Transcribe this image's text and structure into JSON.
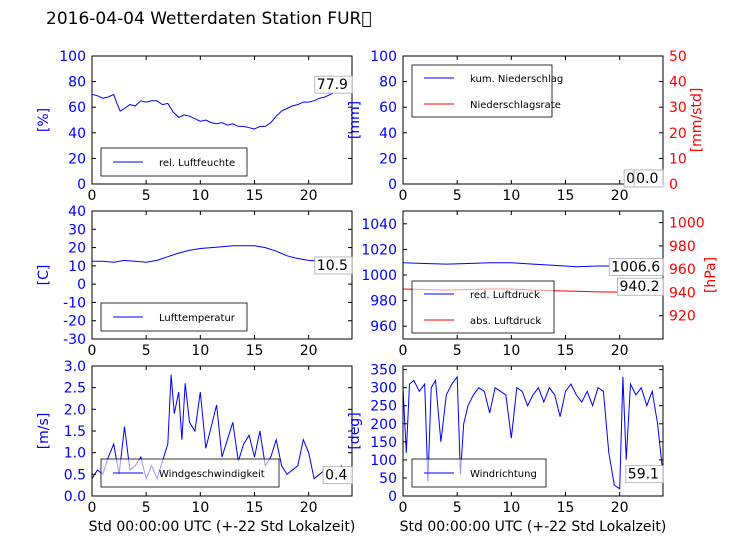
{
  "figure": {
    "title": "2016-04-04 Wetterdaten Station FUR\u0000"
  },
  "colors": {
    "primary": "#0000ff",
    "secondary": "#ff0000",
    "axis": "#000000"
  },
  "chart_data": [
    {
      "id": "humidity",
      "type": "line",
      "xlim": [
        0,
        24
      ],
      "ylim": [
        0,
        100
      ],
      "xticks": [
        0,
        5,
        10,
        15,
        20
      ],
      "yticks": [
        0,
        20,
        40,
        60,
        80,
        100
      ],
      "ylabel": "[%]",
      "xlabel": "",
      "legend": {
        "placement": "lower-left",
        "entries": [
          "rel. Luftfeuchte"
        ]
      },
      "last_value_label": "77.9",
      "series": [
        {
          "name": "rel. Luftfeuchte",
          "color": "#0000ff",
          "x": [
            0,
            0.5,
            1,
            1.5,
            2,
            2.3,
            2.6,
            3,
            3.5,
            4,
            4.5,
            5,
            5.5,
            6,
            6.5,
            7,
            7.5,
            8,
            8.5,
            9,
            9.5,
            10,
            10.5,
            11,
            11.5,
            12,
            12.5,
            13,
            13.5,
            14,
            14.5,
            15,
            15.5,
            16,
            16.5,
            17,
            17.5,
            18,
            18.5,
            19,
            19.5,
            20,
            20.5,
            21,
            21.5,
            22,
            22.5,
            23,
            23.5,
            24
          ],
          "y": [
            70,
            69,
            67,
            68,
            70,
            63,
            57,
            59,
            62,
            61,
            65,
            64,
            65,
            65,
            62,
            63,
            56,
            52,
            54,
            53,
            51,
            49,
            50,
            48,
            47,
            48,
            46,
            47,
            45,
            45,
            44,
            43,
            45,
            45,
            48,
            53,
            57,
            59,
            61,
            62,
            64,
            64,
            65,
            67,
            68,
            70,
            72,
            74,
            76,
            78
          ]
        }
      ]
    },
    {
      "id": "precipitation",
      "type": "line",
      "xlim": [
        0,
        24
      ],
      "ylim": [
        0,
        100
      ],
      "ylim_right": [
        0,
        50
      ],
      "xticks": [
        0,
        5,
        10,
        15,
        20
      ],
      "yticks": [
        0,
        20,
        40,
        60,
        80,
        100
      ],
      "yticks_right": [
        0,
        10,
        20,
        30,
        40,
        50
      ],
      "ylabel": "[mm]",
      "ylabel_right": "[mm/std]",
      "xlabel": "",
      "legend": {
        "placement": "upper-left",
        "entries": [
          "kum. Niederschlag",
          "Niederschlagsrate"
        ]
      },
      "last_value_label": "0.0",
      "last_value_label_right": "0.0",
      "series": [
        {
          "name": "kum. Niederschlag",
          "color": "#0000ff",
          "axis": "left",
          "x": [
            0,
            24
          ],
          "y": [
            0,
            0
          ]
        },
        {
          "name": "Niederschlagsrate",
          "color": "#ff0000",
          "axis": "right",
          "x": [
            0,
            24
          ],
          "y": [
            0,
            0
          ]
        }
      ]
    },
    {
      "id": "temperature",
      "type": "line",
      "xlim": [
        0,
        24
      ],
      "ylim": [
        -30,
        40
      ],
      "xticks": [
        0,
        5,
        10,
        15,
        20
      ],
      "yticks": [
        -30,
        -20,
        -10,
        0,
        10,
        20,
        30,
        40
      ],
      "ylabel": "[C]",
      "xlabel": "",
      "legend": {
        "placement": "lower-left",
        "entries": [
          "Lufttemperatur"
        ]
      },
      "last_value_label": "10.5",
      "series": [
        {
          "name": "Lufttemperatur",
          "color": "#0000ff",
          "x": [
            0,
            1,
            2,
            3,
            4,
            5,
            6,
            7,
            8,
            9,
            10,
            11,
            12,
            13,
            14,
            15,
            16,
            17,
            18,
            19,
            20,
            21,
            22,
            23,
            24
          ],
          "y": [
            12.5,
            12.5,
            12,
            13,
            12.5,
            12,
            13,
            15,
            17,
            18.5,
            19.5,
            20,
            20.5,
            21,
            21,
            21,
            20,
            18,
            15.5,
            14,
            13,
            12.5,
            12,
            11,
            10.5
          ]
        }
      ]
    },
    {
      "id": "pressure",
      "type": "line",
      "xlim": [
        0,
        24
      ],
      "ylim": [
        950,
        1050
      ],
      "ylim_right": [
        900,
        1010
      ],
      "xticks": [
        0,
        5,
        10,
        15,
        20
      ],
      "yticks": [
        960,
        980,
        1000,
        1020,
        1040
      ],
      "yticks_right": [
        920,
        940,
        960,
        980,
        1000
      ],
      "ylabel": "",
      "ylabel_right": "[hPa]",
      "xlabel": "",
      "legend": {
        "placement": "lower-left",
        "entries": [
          "red. Luftdruck",
          "abs. Luftdruck"
        ]
      },
      "last_value_label": "1006.6",
      "last_value_label_right": "940.2",
      "series": [
        {
          "name": "red. Luftdruck",
          "color": "#0000ff",
          "axis": "left",
          "x": [
            0,
            2,
            4,
            6,
            8,
            10,
            12,
            14,
            16,
            18,
            20,
            22,
            24
          ],
          "y": [
            1009.5,
            1009,
            1008.5,
            1009,
            1009.5,
            1009.5,
            1008.5,
            1007.5,
            1006.5,
            1007,
            1007,
            1007,
            1006.6
          ]
        },
        {
          "name": "abs. Luftdruck",
          "color": "#ff0000",
          "axis": "right",
          "x": [
            0,
            2,
            4,
            6,
            8,
            10,
            12,
            14,
            16,
            18,
            20,
            22,
            24
          ],
          "y": [
            943,
            942.5,
            942,
            942.5,
            943,
            943,
            942,
            941.5,
            941,
            940.5,
            940.3,
            940.2,
            940.2
          ]
        }
      ]
    },
    {
      "id": "windspeed",
      "type": "line",
      "xlim": [
        0,
        24
      ],
      "ylim": [
        0,
        3.0
      ],
      "xticks": [
        0,
        5,
        10,
        15,
        20
      ],
      "yticks": [
        0.0,
        0.5,
        1.0,
        1.5,
        2.0,
        2.5,
        3.0
      ],
      "ylabel": "[m/s]",
      "xlabel": "Std 00:00:00 UTC (+-22 Std Lokalzeit)",
      "legend": {
        "placement": "lower-left",
        "entries": [
          "Windgeschwindigkeit"
        ]
      },
      "last_value_label": "0.4",
      "series": [
        {
          "name": "Windgeschwindigkeit",
          "color": "#0000ff",
          "x": [
            0,
            0.5,
            1,
            1.5,
            2,
            2.5,
            3,
            3.5,
            4,
            4.5,
            5,
            5.5,
            6,
            6.5,
            7,
            7.3,
            7.6,
            8,
            8.3,
            8.6,
            9,
            9.5,
            10,
            10.5,
            11,
            11.5,
            12,
            12.5,
            13,
            13.5,
            14,
            14.5,
            15,
            15.5,
            16,
            16.5,
            17,
            17.5,
            18,
            18.5,
            19,
            19.5,
            20,
            20.5,
            21,
            21.5,
            22,
            22.5,
            23,
            23.5,
            24
          ],
          "y": [
            0.4,
            0.6,
            0.5,
            0.9,
            1.2,
            0.5,
            1.6,
            0.6,
            0.7,
            0.9,
            0.4,
            0.7,
            0.4,
            0.8,
            1.2,
            2.8,
            1.9,
            2.4,
            1.3,
            2.6,
            1.7,
            1.5,
            2.4,
            1.1,
            1.6,
            2.1,
            0.9,
            1.3,
            1.7,
            0.8,
            1.2,
            1.4,
            0.9,
            1.5,
            0.7,
            0.9,
            1.3,
            0.7,
            0.5,
            0.6,
            0.7,
            1.3,
            1.0,
            0.4,
            0.5,
            0.6,
            0.4,
            0.3,
            0.7,
            0.5,
            0.4
          ]
        }
      ]
    },
    {
      "id": "winddirection",
      "type": "line",
      "xlim": [
        0,
        24
      ],
      "ylim": [
        0,
        360
      ],
      "xticks": [
        0,
        5,
        10,
        15,
        20
      ],
      "yticks": [
        0,
        50,
        100,
        150,
        200,
        250,
        300,
        350
      ],
      "ylabel": "[deg]",
      "xlabel": "Std 00:00:00 UTC (+-22 Std Lokalzeit)",
      "legend": {
        "placement": "lower-left",
        "entries": [
          "Windrichtung"
        ]
      },
      "last_value_label": "59.1",
      "series": [
        {
          "name": "Windrichtung",
          "color": "#0000ff",
          "x": [
            0,
            0.3,
            0.6,
            1,
            1.5,
            2,
            2.3,
            2.6,
            3,
            3.5,
            4,
            4.5,
            5,
            5.3,
            5.6,
            6,
            6.5,
            7,
            7.5,
            8,
            8.5,
            9,
            9.5,
            10,
            10.5,
            11,
            11.5,
            12,
            12.5,
            13,
            13.5,
            14,
            14.5,
            15,
            15.5,
            16,
            16.5,
            17,
            17.5,
            18,
            18.5,
            19,
            19.5,
            20,
            20.3,
            20.6,
            21,
            21.5,
            22,
            22.5,
            23,
            23.5,
            24
          ],
          "y": [
            300,
            120,
            310,
            320,
            290,
            310,
            40,
            300,
            320,
            150,
            280,
            310,
            330,
            60,
            200,
            250,
            280,
            300,
            290,
            230,
            300,
            290,
            280,
            160,
            300,
            290,
            250,
            280,
            300,
            260,
            300,
            280,
            220,
            290,
            310,
            280,
            260,
            290,
            250,
            300,
            290,
            120,
            30,
            20,
            330,
            100,
            310,
            280,
            300,
            250,
            290,
            200,
            59
          ]
        }
      ]
    }
  ]
}
